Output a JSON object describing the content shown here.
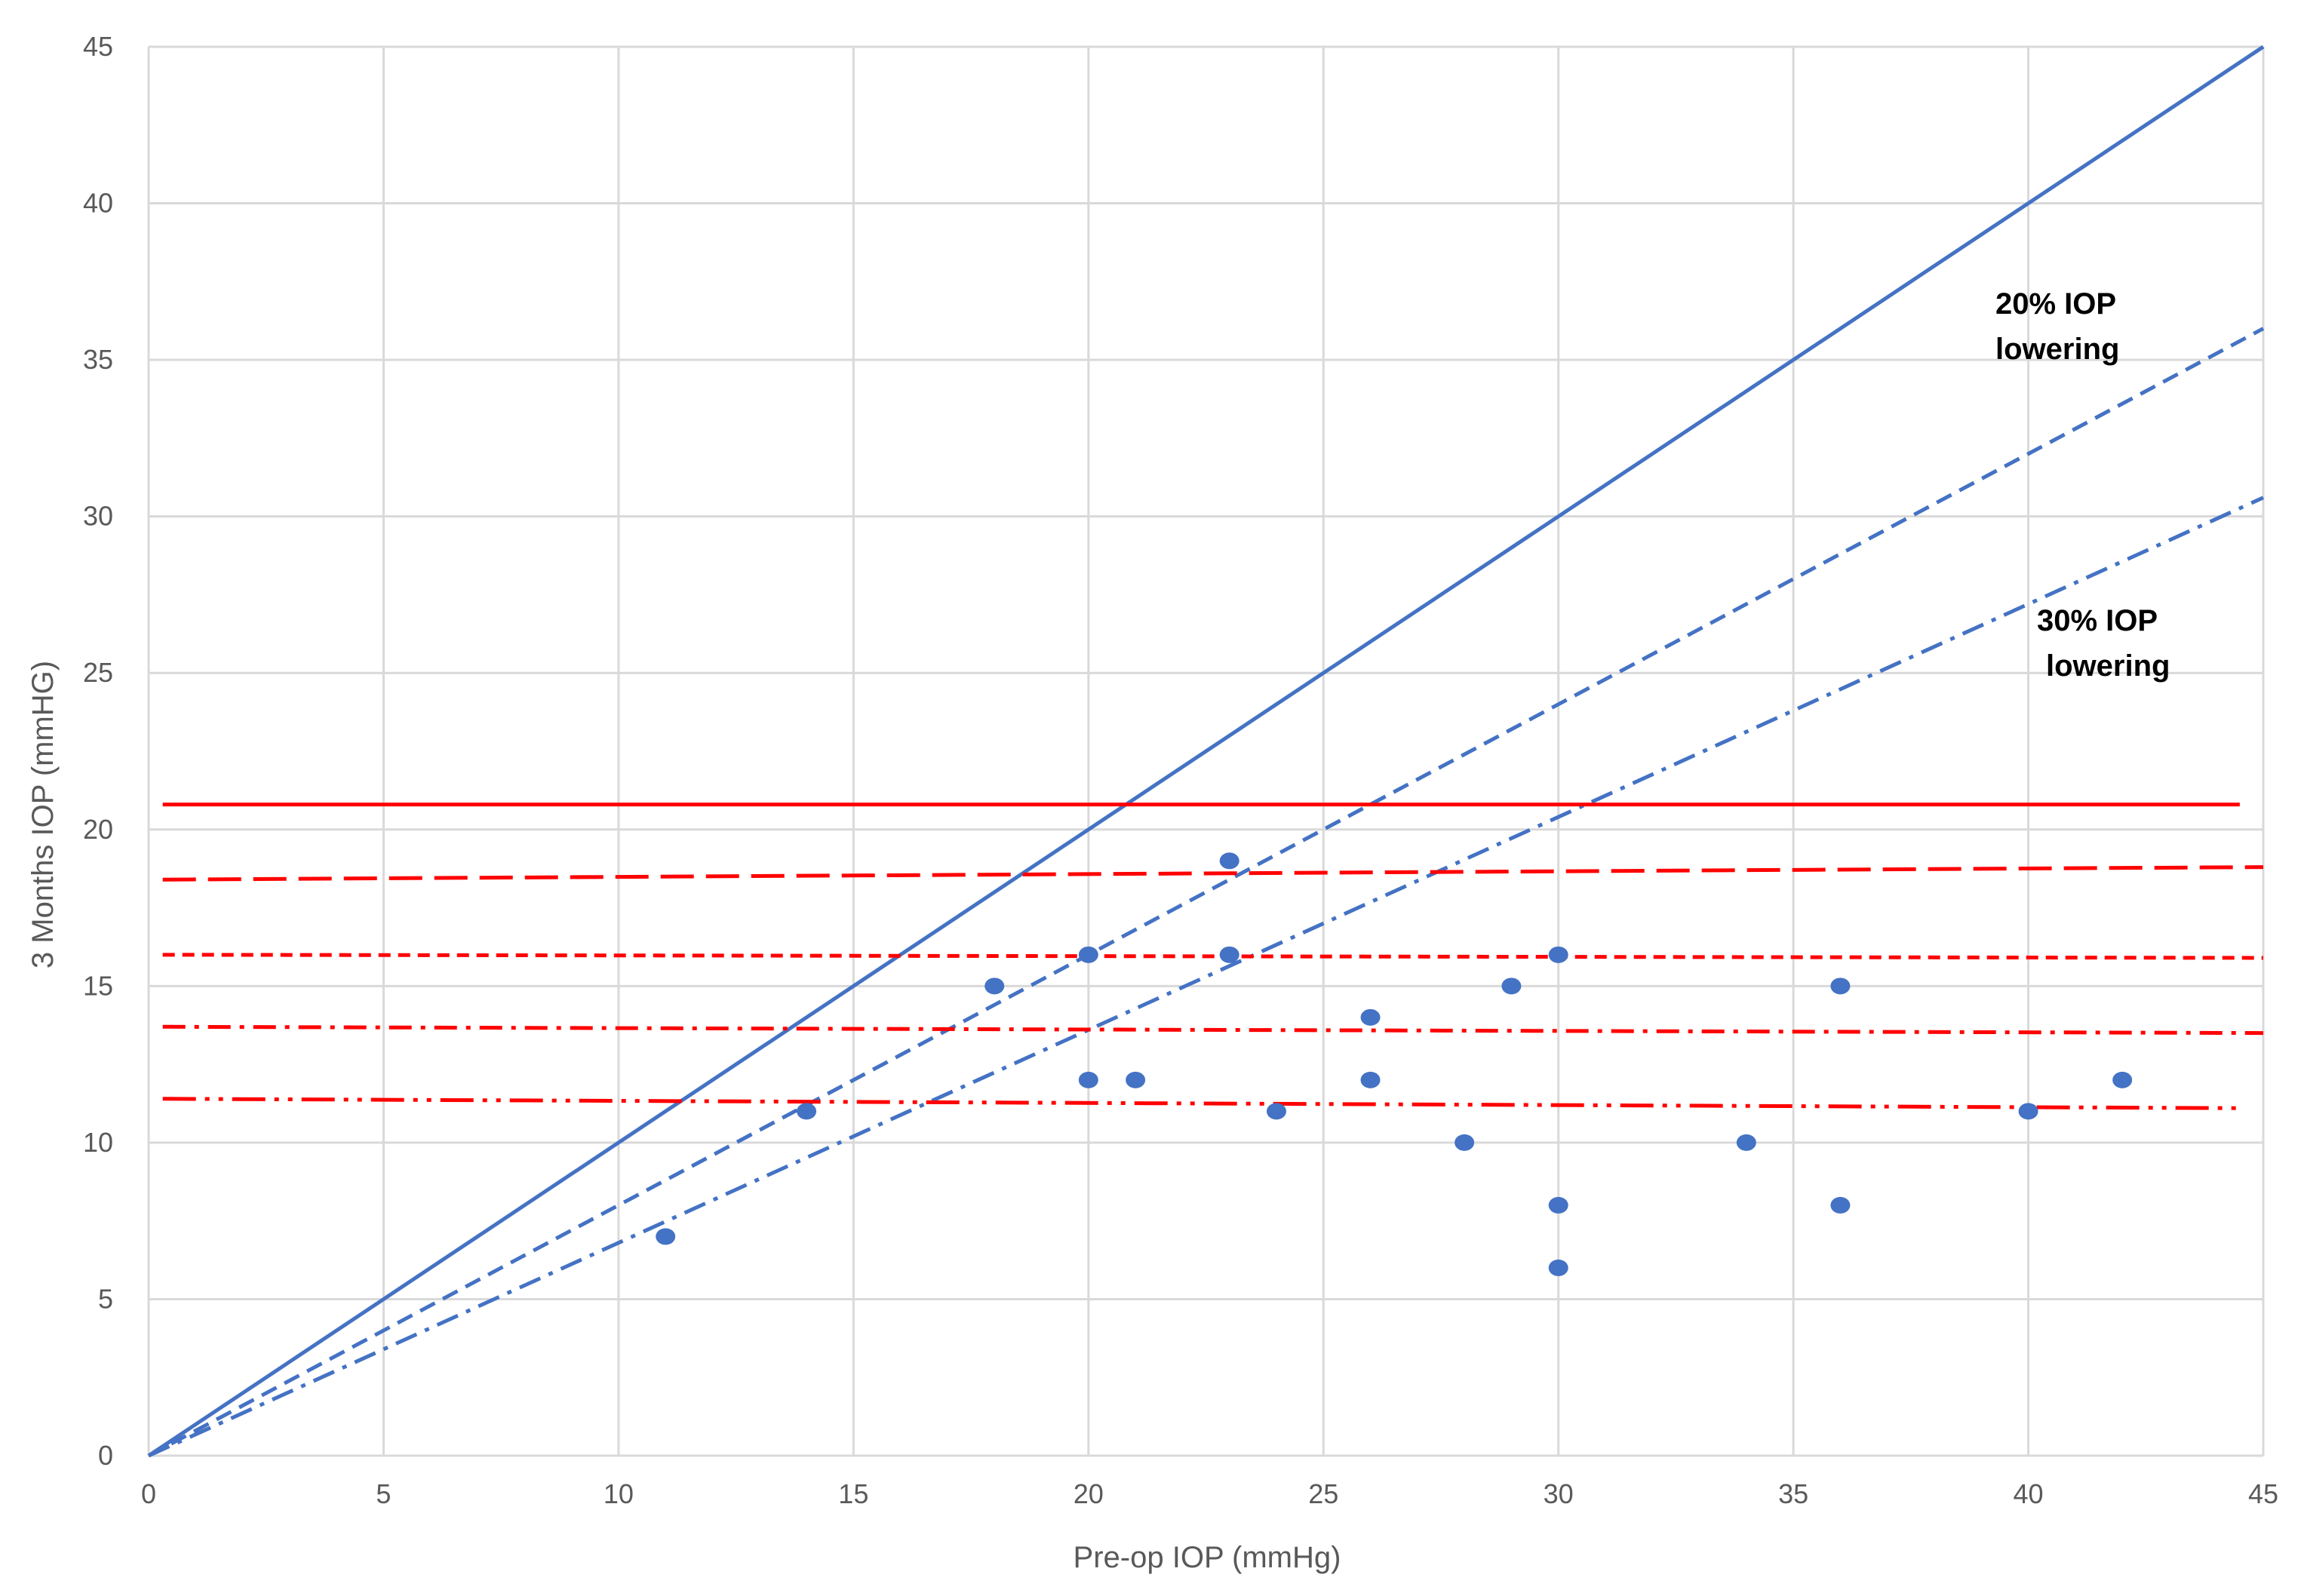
{
  "chart_data": {
    "type": "scatter",
    "xlabel": "Pre-op IOP (mmHg)",
    "ylabel": "3 Months IOP (mmHG)",
    "xlim": [
      0,
      45
    ],
    "ylim": [
      0,
      45
    ],
    "xticks": [
      "0",
      "5",
      "10",
      "15",
      "20",
      "25",
      "30",
      "35",
      "40",
      "45"
    ],
    "yticks": [
      "0",
      "5",
      "10",
      "15",
      "20",
      "25",
      "30",
      "35",
      "40",
      "45"
    ],
    "grid": true,
    "points": [
      {
        "x": 11,
        "y": 7
      },
      {
        "x": 14,
        "y": 11
      },
      {
        "x": 18,
        "y": 15
      },
      {
        "x": 20,
        "y": 16
      },
      {
        "x": 20,
        "y": 12
      },
      {
        "x": 21,
        "y": 12
      },
      {
        "x": 23,
        "y": 19
      },
      {
        "x": 23,
        "y": 16
      },
      {
        "x": 24,
        "y": 11
      },
      {
        "x": 26,
        "y": 14
      },
      {
        "x": 26,
        "y": 12
      },
      {
        "x": 28,
        "y": 10
      },
      {
        "x": 29,
        "y": 15
      },
      {
        "x": 30,
        "y": 16
      },
      {
        "x": 30,
        "y": 8
      },
      {
        "x": 30,
        "y": 6
      },
      {
        "x": 34,
        "y": 10
      },
      {
        "x": 36,
        "y": 15
      },
      {
        "x": 36,
        "y": 8
      },
      {
        "x": 40,
        "y": 11
      },
      {
        "x": 42,
        "y": 12
      }
    ],
    "reference_lines": [
      {
        "kind": "slope",
        "slope": 1.0,
        "style": "solid"
      },
      {
        "kind": "slope",
        "slope": 0.8,
        "style": "dashed"
      },
      {
        "kind": "slope",
        "slope": 0.68,
        "style": "dash-dot"
      }
    ],
    "threshold_lines": [
      {
        "y_start": 20.8,
        "y_end": 20.8,
        "x_end": 44.5,
        "style": "solid"
      },
      {
        "y_start": 18.4,
        "y_end": 18.8,
        "x_end": 45,
        "style": "long-dash"
      },
      {
        "y_start": 16.0,
        "y_end": 15.9,
        "x_end": 45,
        "style": "short-dash"
      },
      {
        "y_start": 13.7,
        "y_end": 13.5,
        "x_end": 45,
        "style": "dash-dot"
      },
      {
        "y_start": 11.4,
        "y_end": 11.1,
        "x_end": 44.5,
        "style": "long-dash-dot-dot"
      }
    ],
    "annotations": [
      {
        "lines": [
          "20% IOP",
          "lowering"
        ]
      },
      {
        "lines": [
          "30% IOP",
          "lowering"
        ]
      }
    ],
    "colors": {
      "points": "#4472C4",
      "reference": "#4472C4",
      "threshold": "#FF0000",
      "grid": "#D9D9D9"
    }
  }
}
